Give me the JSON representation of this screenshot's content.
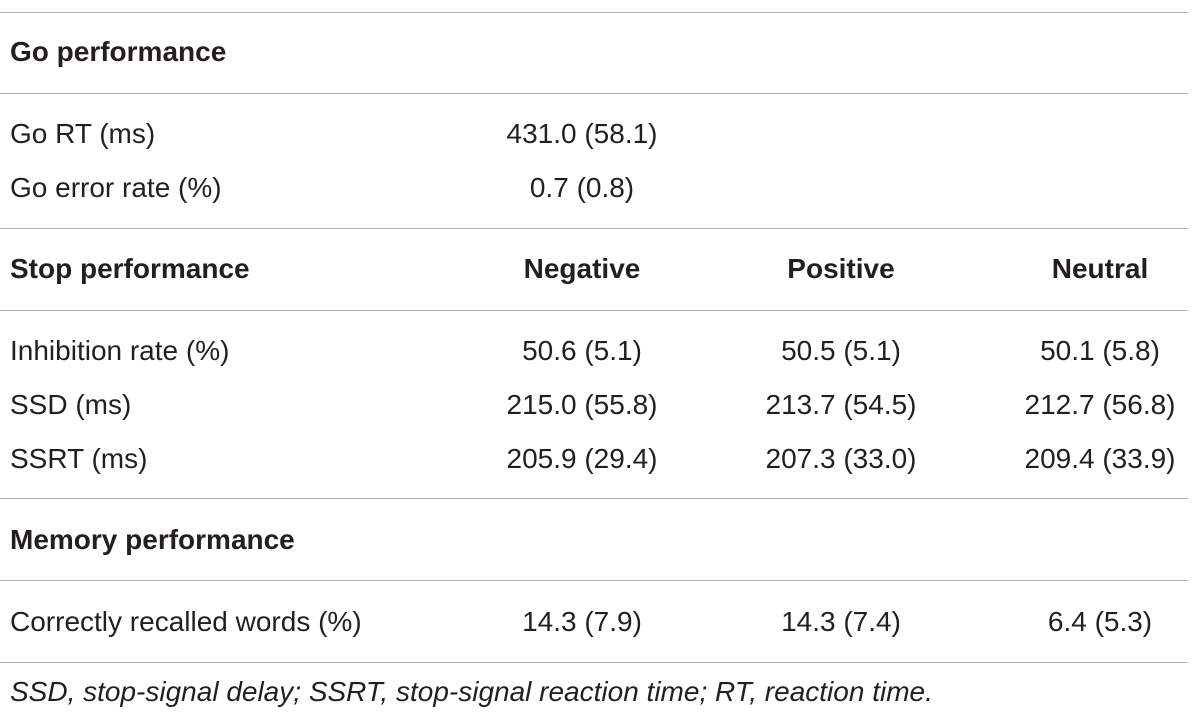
{
  "sections": {
    "go": {
      "title": "Go performance",
      "rows": [
        {
          "label": "Go RT (ms)",
          "value": "431.0 (58.1)"
        },
        {
          "label": "Go error rate (%)",
          "value": "0.7 (0.8)"
        }
      ]
    },
    "stop": {
      "title": "Stop performance",
      "columns": [
        "Negative",
        "Positive",
        "Neutral"
      ],
      "rows": [
        {
          "label": "Inhibition rate (%)",
          "values": [
            "50.6 (5.1)",
            "50.5 (5.1)",
            "50.1 (5.8)"
          ]
        },
        {
          "label": "SSD (ms)",
          "values": [
            "215.0 (55.8)",
            "213.7 (54.5)",
            "212.7 (56.8)"
          ]
        },
        {
          "label": "SSRT (ms)",
          "values": [
            "205.9 (29.4)",
            "207.3 (33.0)",
            "209.4 (33.9)"
          ]
        }
      ]
    },
    "memory": {
      "title": "Memory performance",
      "rows": [
        {
          "label": "Correctly recalled words (%)",
          "values": [
            "14.3 (7.9)",
            "14.3 (7.4)",
            "6.4 (5.3)"
          ]
        }
      ]
    }
  },
  "footnote": "SSD, stop-signal delay; SSRT, stop-signal reaction time; RT, reaction time."
}
